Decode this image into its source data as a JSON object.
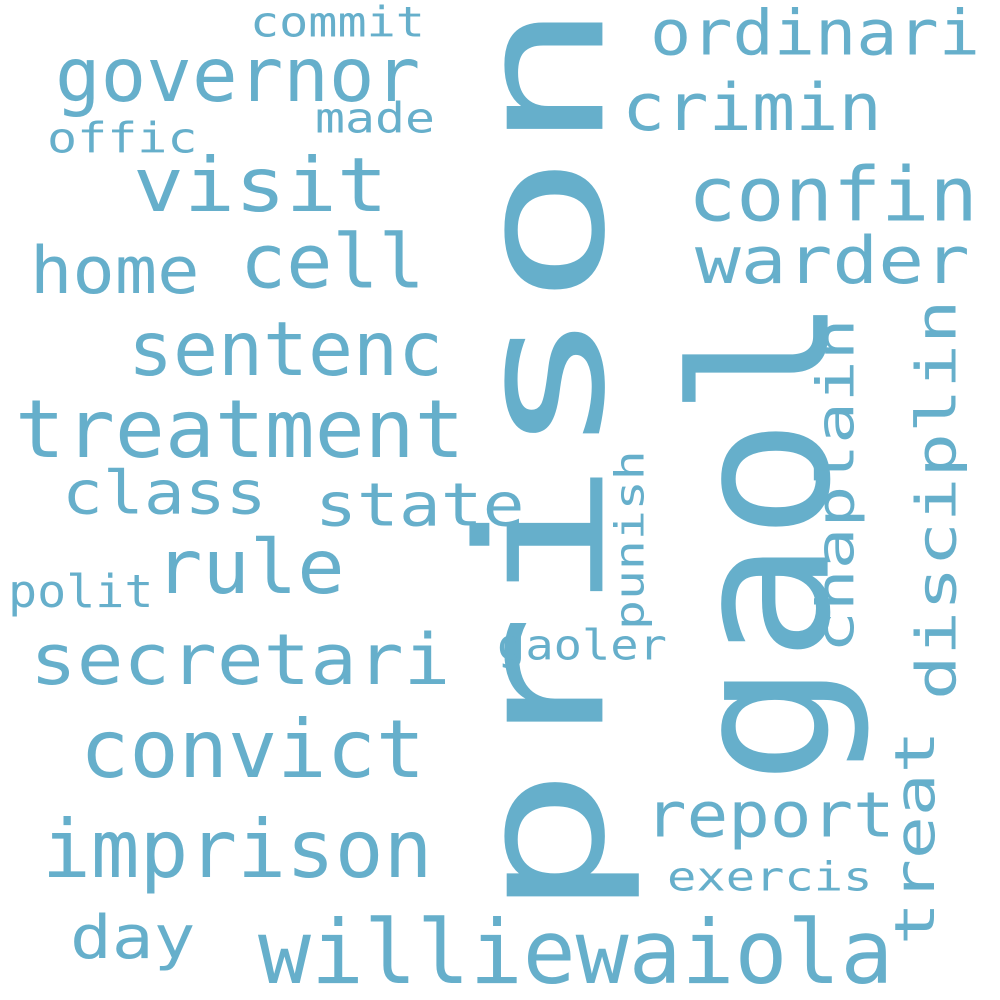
{
  "word_cloud": {
    "color": "#66AFCB",
    "words": [
      {
        "text": "prison",
        "orientation": "vertical"
      },
      {
        "text": "gaol",
        "orientation": "vertical"
      },
      {
        "text": "williewaiola",
        "orientation": "horizontal"
      },
      {
        "text": "treatment",
        "orientation": "horizontal"
      },
      {
        "text": "convict",
        "orientation": "horizontal"
      },
      {
        "text": "imprison",
        "orientation": "horizontal"
      },
      {
        "text": "secretari",
        "orientation": "horizontal"
      },
      {
        "text": "governor",
        "orientation": "horizontal"
      },
      {
        "text": "visit",
        "orientation": "horizontal"
      },
      {
        "text": "rule",
        "orientation": "horizontal"
      },
      {
        "text": "confin",
        "orientation": "horizontal"
      },
      {
        "text": "sentenc",
        "orientation": "horizontal"
      },
      {
        "text": "cell",
        "orientation": "horizontal"
      },
      {
        "text": "home",
        "orientation": "horizontal"
      },
      {
        "text": "warder",
        "orientation": "horizontal"
      },
      {
        "text": "crimin",
        "orientation": "horizontal"
      },
      {
        "text": "ordinari",
        "orientation": "horizontal"
      },
      {
        "text": "report",
        "orientation": "horizontal"
      },
      {
        "text": "class",
        "orientation": "horizontal"
      },
      {
        "text": "state",
        "orientation": "horizontal"
      },
      {
        "text": "day",
        "orientation": "horizontal"
      },
      {
        "text": "disciplin",
        "orientation": "vertical"
      },
      {
        "text": "chaplain",
        "orientation": "vertical"
      },
      {
        "text": "treat",
        "orientation": "vertical"
      },
      {
        "text": "punish",
        "orientation": "vertical"
      },
      {
        "text": "gaoler",
        "orientation": "horizontal"
      },
      {
        "text": "exercis",
        "orientation": "horizontal"
      },
      {
        "text": "polit",
        "orientation": "horizontal"
      },
      {
        "text": "commit",
        "orientation": "horizontal"
      },
      {
        "text": "made",
        "orientation": "horizontal"
      },
      {
        "text": "offic",
        "orientation": "horizontal"
      }
    ]
  }
}
